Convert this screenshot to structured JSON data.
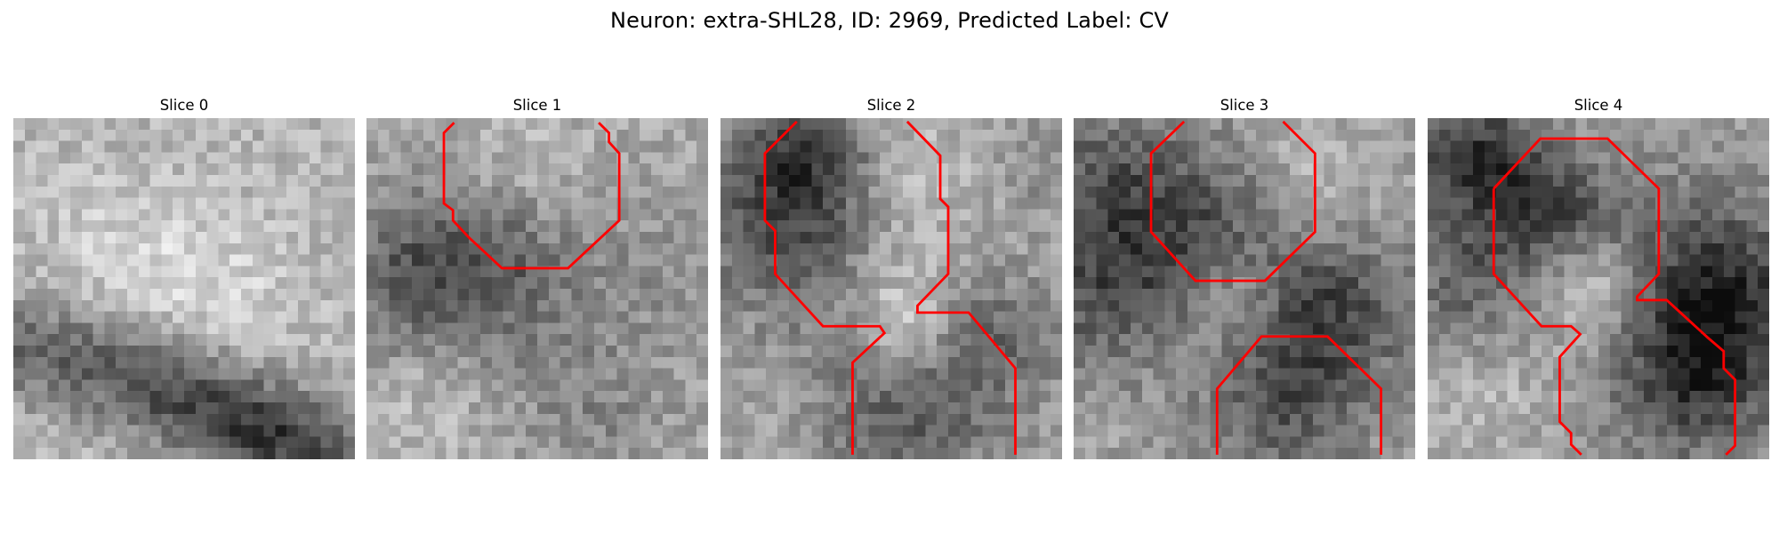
{
  "figure": {
    "title": "Neuron: extra-SHL28, ID: 2969, Predicted Label: CV"
  },
  "panels": [
    {
      "title": "Slice 0"
    },
    {
      "title": "Slice 1"
    },
    {
      "title": "Slice 2"
    },
    {
      "title": "Slice 3"
    },
    {
      "title": "Slice 4"
    }
  ],
  "colors": {
    "contour": "#ff0000",
    "background": "#ffffff"
  }
}
